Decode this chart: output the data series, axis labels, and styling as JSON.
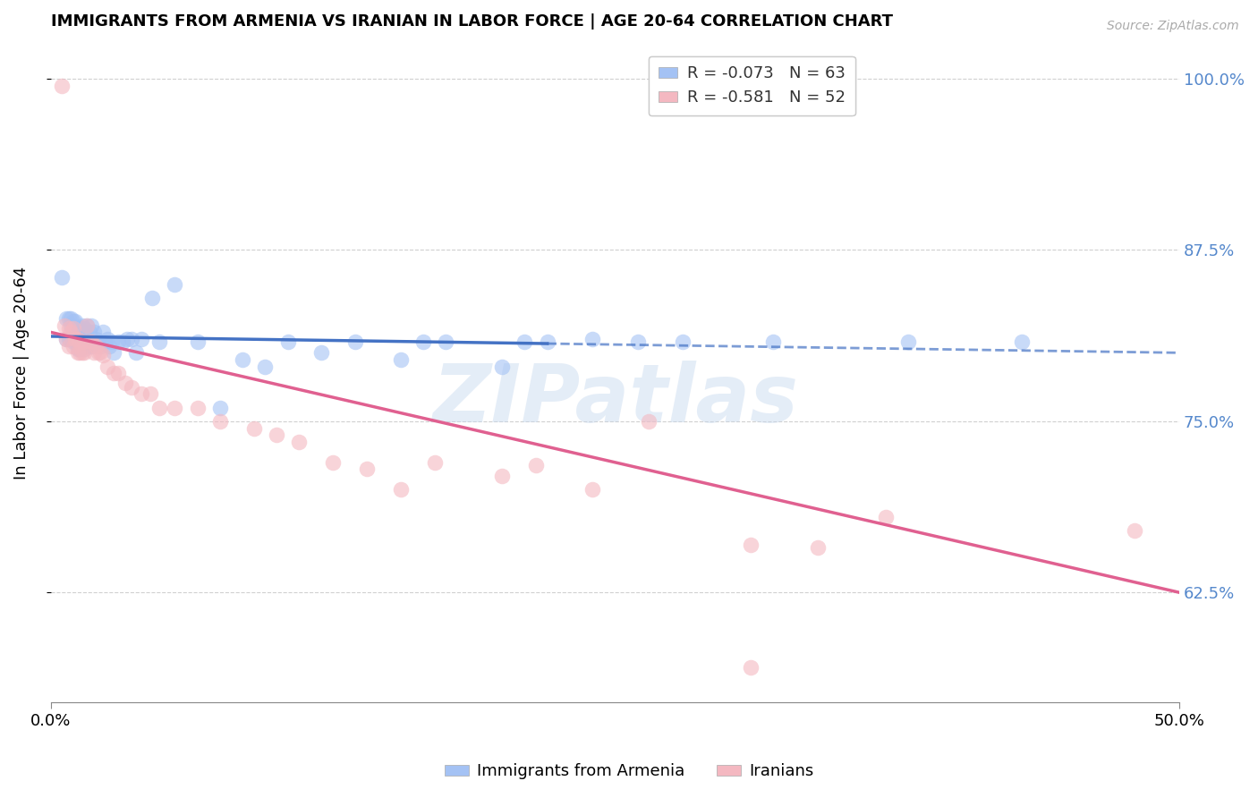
{
  "title": "IMMIGRANTS FROM ARMENIA VS IRANIAN IN LABOR FORCE | AGE 20-64 CORRELATION CHART",
  "source": "Source: ZipAtlas.com",
  "xlim": [
    0.0,
    0.5
  ],
  "ylim": [
    0.545,
    1.025
  ],
  "ylabel_ticks": [
    0.625,
    0.75,
    0.875,
    1.0
  ],
  "ylabel_tick_labels": [
    "62.5%",
    "75.0%",
    "87.5%",
    "100.0%"
  ],
  "xlabel_ticks": [
    0.0,
    0.5
  ],
  "xlabel_tick_labels": [
    "0.0%",
    "50.0%"
  ],
  "blue_R": "-0.073",
  "blue_N": "63",
  "pink_R": "-0.581",
  "pink_N": "52",
  "legend_label_blue": "Immigrants from Armenia",
  "legend_label_pink": "Iranians",
  "blue_scatter_color": "#a4c2f4",
  "pink_scatter_color": "#f4b8c1",
  "blue_line_color": "#4472c4",
  "pink_line_color": "#e06090",
  "watermark_color": "#c5d8ee",
  "grid_color": "#d0d0d0",
  "background_color": "#ffffff",
  "blue_x": [
    0.005,
    0.007,
    0.007,
    0.008,
    0.008,
    0.009,
    0.009,
    0.009,
    0.01,
    0.01,
    0.011,
    0.011,
    0.012,
    0.012,
    0.013,
    0.013,
    0.014,
    0.014,
    0.015,
    0.015,
    0.016,
    0.016,
    0.017,
    0.018,
    0.018,
    0.019,
    0.02,
    0.021,
    0.022,
    0.023,
    0.024,
    0.025,
    0.026,
    0.027,
    0.028,
    0.03,
    0.032,
    0.034,
    0.036,
    0.038,
    0.04,
    0.045,
    0.048,
    0.055,
    0.065,
    0.075,
    0.085,
    0.095,
    0.105,
    0.12,
    0.135,
    0.155,
    0.165,
    0.175,
    0.2,
    0.21,
    0.22,
    0.24,
    0.26,
    0.28,
    0.32,
    0.38,
    0.43
  ],
  "blue_y": [
    0.855,
    0.825,
    0.81,
    0.825,
    0.81,
    0.825,
    0.82,
    0.81,
    0.823,
    0.808,
    0.823,
    0.808,
    0.818,
    0.803,
    0.818,
    0.803,
    0.82,
    0.805,
    0.818,
    0.803,
    0.82,
    0.805,
    0.815,
    0.82,
    0.805,
    0.815,
    0.81,
    0.808,
    0.805,
    0.815,
    0.808,
    0.81,
    0.805,
    0.808,
    0.8,
    0.808,
    0.808,
    0.81,
    0.81,
    0.8,
    0.81,
    0.84,
    0.808,
    0.85,
    0.808,
    0.76,
    0.795,
    0.79,
    0.808,
    0.8,
    0.808,
    0.795,
    0.808,
    0.808,
    0.79,
    0.808,
    0.808,
    0.81,
    0.808,
    0.808,
    0.808,
    0.808,
    0.808
  ],
  "pink_x": [
    0.005,
    0.006,
    0.007,
    0.008,
    0.008,
    0.009,
    0.01,
    0.01,
    0.011,
    0.012,
    0.012,
    0.013,
    0.013,
    0.014,
    0.014,
    0.015,
    0.015,
    0.016,
    0.017,
    0.018,
    0.019,
    0.02,
    0.021,
    0.022,
    0.023,
    0.025,
    0.028,
    0.03,
    0.033,
    0.036,
    0.04,
    0.044,
    0.048,
    0.055,
    0.065,
    0.075,
    0.09,
    0.1,
    0.11,
    0.125,
    0.14,
    0.155,
    0.17,
    0.2,
    0.215,
    0.24,
    0.265,
    0.31,
    0.34,
    0.37,
    0.48,
    0.31
  ],
  "pink_y": [
    0.995,
    0.82,
    0.81,
    0.818,
    0.805,
    0.815,
    0.818,
    0.805,
    0.81,
    0.81,
    0.8,
    0.808,
    0.8,
    0.808,
    0.8,
    0.808,
    0.8,
    0.82,
    0.808,
    0.808,
    0.8,
    0.805,
    0.8,
    0.8,
    0.798,
    0.79,
    0.785,
    0.785,
    0.778,
    0.775,
    0.77,
    0.77,
    0.76,
    0.76,
    0.76,
    0.75,
    0.745,
    0.74,
    0.735,
    0.72,
    0.715,
    0.7,
    0.72,
    0.71,
    0.718,
    0.7,
    0.75,
    0.66,
    0.658,
    0.68,
    0.67,
    0.57
  ]
}
